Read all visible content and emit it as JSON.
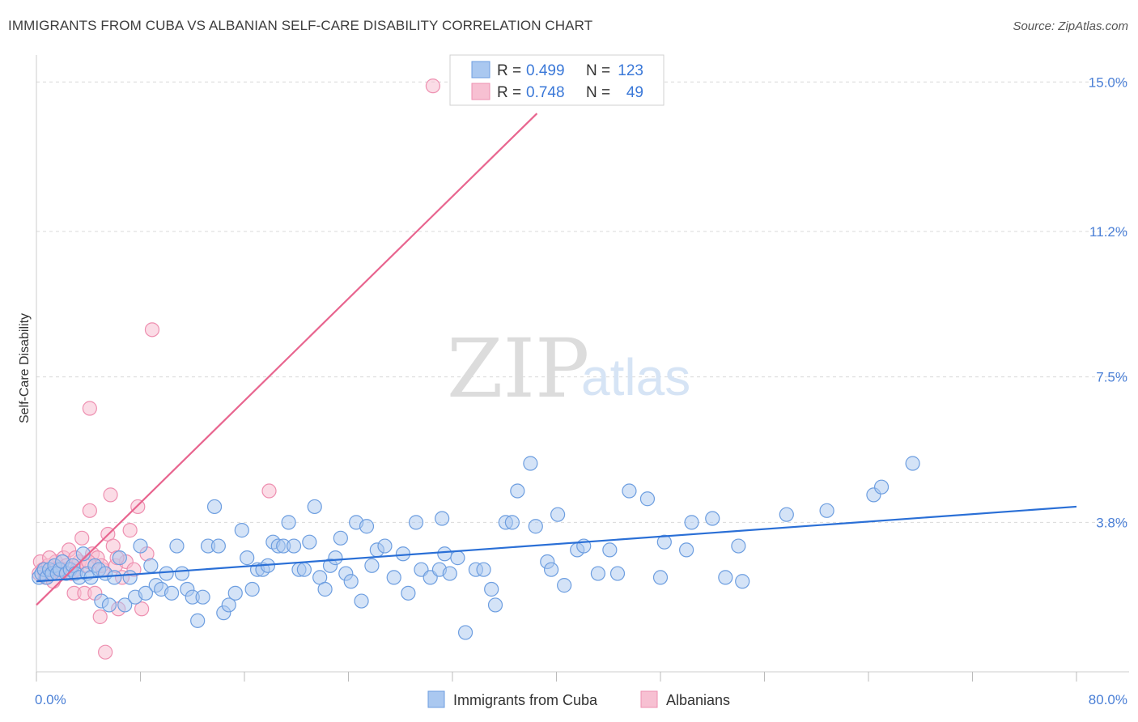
{
  "header": {
    "title": "IMMIGRANTS FROM CUBA VS ALBANIAN SELF-CARE DISABILITY CORRELATION CHART",
    "source": "Source: ZipAtlas.com"
  },
  "watermark": {
    "part1": "ZIP",
    "part2": "atlas"
  },
  "legend_box": {
    "r_label": "R =",
    "n_label": "N =",
    "rows": [
      {
        "r": "0.499",
        "n": "123"
      },
      {
        "r": "0.748",
        "n": "49"
      }
    ]
  },
  "colors": {
    "blue_fill": "#aac8f0",
    "blue_stroke": "#6d9ee0",
    "blue_line": "#2a6fd6",
    "pink_fill": "#f7c0d2",
    "pink_stroke": "#ee8fb0",
    "pink_line": "#e8658f",
    "grid": "#d9d9d9",
    "tick_label": "#4a7fd6"
  },
  "chart_data": {
    "type": "scatter",
    "title": "IMMIGRANTS FROM CUBA VS ALBANIAN SELF-CARE DISABILITY CORRELATION CHART",
    "xlabel": "",
    "ylabel": "Self-Care Disability",
    "xlim": [
      0,
      80
    ],
    "ylim": [
      0,
      15.5
    ],
    "x_tick_labels": [
      "0.0%",
      "80.0%"
    ],
    "y_ticks": [
      3.8,
      7.5,
      11.2,
      15.0
    ],
    "y_tick_labels": [
      "3.8%",
      "7.5%",
      "11.2%",
      "15.0%"
    ],
    "grid": true,
    "legend_position": "top-center",
    "series": [
      {
        "name": "Immigrants from Cuba",
        "color": "#6d9ee0",
        "trend": {
          "x": [
            0,
            80
          ],
          "y": [
            2.3,
            4.2
          ]
        },
        "points": [
          [
            0.2,
            2.4
          ],
          [
            0.4,
            2.5
          ],
          [
            0.6,
            2.6
          ],
          [
            0.8,
            2.4
          ],
          [
            1.0,
            2.6
          ],
          [
            1.2,
            2.5
          ],
          [
            1.4,
            2.7
          ],
          [
            1.6,
            2.5
          ],
          [
            1.8,
            2.6
          ],
          [
            2.0,
            2.8
          ],
          [
            2.3,
            2.5
          ],
          [
            2.6,
            2.6
          ],
          [
            2.8,
            2.7
          ],
          [
            3.0,
            2.5
          ],
          [
            3.3,
            2.4
          ],
          [
            3.6,
            3.0
          ],
          [
            3.9,
            2.5
          ],
          [
            4.2,
            2.4
          ],
          [
            4.5,
            2.7
          ],
          [
            4.8,
            2.6
          ],
          [
            5.0,
            1.8
          ],
          [
            5.3,
            2.5
          ],
          [
            5.6,
            1.7
          ],
          [
            6.0,
            2.4
          ],
          [
            6.4,
            2.9
          ],
          [
            6.8,
            1.7
          ],
          [
            7.2,
            2.4
          ],
          [
            7.6,
            1.9
          ],
          [
            8.0,
            3.2
          ],
          [
            8.4,
            2.0
          ],
          [
            8.8,
            2.7
          ],
          [
            9.2,
            2.2
          ],
          [
            9.6,
            2.1
          ],
          [
            10.0,
            2.5
          ],
          [
            10.4,
            2.0
          ],
          [
            10.8,
            3.2
          ],
          [
            11.2,
            2.5
          ],
          [
            11.6,
            2.1
          ],
          [
            12.0,
            1.9
          ],
          [
            12.4,
            1.3
          ],
          [
            12.8,
            1.9
          ],
          [
            13.2,
            3.2
          ],
          [
            13.7,
            4.2
          ],
          [
            14.0,
            3.2
          ],
          [
            14.4,
            1.5
          ],
          [
            14.8,
            1.7
          ],
          [
            15.3,
            2.0
          ],
          [
            15.8,
            3.6
          ],
          [
            16.2,
            2.9
          ],
          [
            16.6,
            2.1
          ],
          [
            17.0,
            2.6
          ],
          [
            17.4,
            2.6
          ],
          [
            17.8,
            2.7
          ],
          [
            18.2,
            3.3
          ],
          [
            18.6,
            3.2
          ],
          [
            19.0,
            3.2
          ],
          [
            19.4,
            3.8
          ],
          [
            19.8,
            3.2
          ],
          [
            20.2,
            2.6
          ],
          [
            20.6,
            2.6
          ],
          [
            21.0,
            3.3
          ],
          [
            21.4,
            4.2
          ],
          [
            21.8,
            2.4
          ],
          [
            22.2,
            2.1
          ],
          [
            22.6,
            2.7
          ],
          [
            23.0,
            2.9
          ],
          [
            23.4,
            3.4
          ],
          [
            23.8,
            2.5
          ],
          [
            24.2,
            2.3
          ],
          [
            24.6,
            3.8
          ],
          [
            25.0,
            1.8
          ],
          [
            25.4,
            3.7
          ],
          [
            25.8,
            2.7
          ],
          [
            26.2,
            3.1
          ],
          [
            26.8,
            3.2
          ],
          [
            27.5,
            2.4
          ],
          [
            28.2,
            3.0
          ],
          [
            28.6,
            2.0
          ],
          [
            29.2,
            3.8
          ],
          [
            29.6,
            2.6
          ],
          [
            30.3,
            2.4
          ],
          [
            31.0,
            2.6
          ],
          [
            31.2,
            3.9
          ],
          [
            31.4,
            3.0
          ],
          [
            31.8,
            2.5
          ],
          [
            32.4,
            2.9
          ],
          [
            33.0,
            1.0
          ],
          [
            33.8,
            2.6
          ],
          [
            34.4,
            2.6
          ],
          [
            35.0,
            2.1
          ],
          [
            35.3,
            1.7
          ],
          [
            36.1,
            3.8
          ],
          [
            36.6,
            3.8
          ],
          [
            37.0,
            4.6
          ],
          [
            38.0,
            5.3
          ],
          [
            38.4,
            3.7
          ],
          [
            39.3,
            2.8
          ],
          [
            39.6,
            2.6
          ],
          [
            40.1,
            4.0
          ],
          [
            40.6,
            2.2
          ],
          [
            41.6,
            3.1
          ],
          [
            42.1,
            3.2
          ],
          [
            43.2,
            2.5
          ],
          [
            44.1,
            3.1
          ],
          [
            44.7,
            2.5
          ],
          [
            45.6,
            4.6
          ],
          [
            47.0,
            4.4
          ],
          [
            48.0,
            2.4
          ],
          [
            48.3,
            3.3
          ],
          [
            50.0,
            3.1
          ],
          [
            50.4,
            3.8
          ],
          [
            52.0,
            3.9
          ],
          [
            53.0,
            2.4
          ],
          [
            54.0,
            3.2
          ],
          [
            54.3,
            2.3
          ],
          [
            57.7,
            4.0
          ],
          [
            60.8,
            4.1
          ],
          [
            64.4,
            4.5
          ],
          [
            65.0,
            4.7
          ],
          [
            67.4,
            5.3
          ]
        ]
      },
      {
        "name": "Albanians",
        "color": "#ee8fb0",
        "trend": {
          "x": [
            0,
            38.5
          ],
          "y": [
            1.7,
            14.2
          ]
        },
        "points": [
          [
            0.2,
            2.5
          ],
          [
            0.3,
            2.8
          ],
          [
            0.5,
            2.6
          ],
          [
            0.7,
            2.4
          ],
          [
            0.9,
            2.7
          ],
          [
            1.1,
            2.5
          ],
          [
            1.3,
            2.3
          ],
          [
            1.5,
            2.8
          ],
          [
            1.7,
            2.6
          ],
          [
            1.9,
            2.5
          ],
          [
            2.1,
            2.9
          ],
          [
            2.3,
            2.7
          ],
          [
            2.5,
            3.1
          ],
          [
            2.7,
            2.5
          ],
          [
            2.9,
            2.0
          ],
          [
            3.1,
            2.6
          ],
          [
            3.3,
            2.8
          ],
          [
            3.5,
            3.4
          ],
          [
            3.7,
            2.0
          ],
          [
            3.9,
            2.7
          ],
          [
            4.1,
            4.1
          ],
          [
            4.3,
            3.0
          ],
          [
            4.5,
            2.0
          ],
          [
            4.7,
            2.9
          ],
          [
            4.9,
            1.4
          ],
          [
            5.1,
            2.6
          ],
          [
            5.3,
            0.5
          ],
          [
            5.5,
            3.5
          ],
          [
            5.7,
            4.5
          ],
          [
            5.9,
            3.2
          ],
          [
            6.1,
            2.7
          ],
          [
            6.3,
            1.6
          ],
          [
            6.6,
            2.4
          ],
          [
            6.9,
            2.8
          ],
          [
            7.2,
            3.6
          ],
          [
            7.5,
            2.6
          ],
          [
            7.8,
            4.2
          ],
          [
            8.1,
            1.6
          ],
          [
            8.5,
            3.0
          ],
          [
            8.9,
            8.7
          ],
          [
            4.1,
            6.7
          ],
          [
            2.0,
            2.6
          ],
          [
            1.0,
            2.9
          ],
          [
            3.0,
            2.9
          ],
          [
            4.0,
            2.8
          ],
          [
            5.0,
            2.7
          ],
          [
            6.2,
            2.9
          ],
          [
            17.9,
            4.6
          ],
          [
            30.5,
            14.9
          ]
        ]
      }
    ]
  },
  "bottom_legend": {
    "items": [
      {
        "label": "Immigrants from Cuba"
      },
      {
        "label": "Albanians"
      }
    ]
  }
}
